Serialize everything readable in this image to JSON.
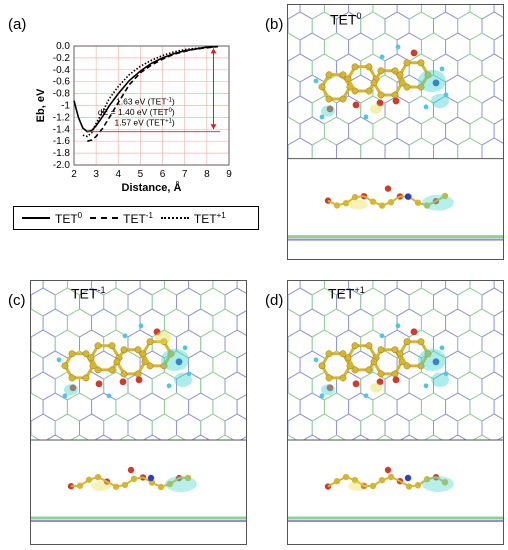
{
  "panels": {
    "a": "(a)",
    "b": "(b)",
    "c": "(c)",
    "d": "(d)"
  },
  "chart_data": {
    "type": "line",
    "xlabel": "Distance, Å",
    "ylabel": "Eb, eV",
    "xlim": [
      2,
      9
    ],
    "ylim": [
      -2.0,
      0.0
    ],
    "xticks": [
      "2",
      "3",
      "4",
      "5",
      "6",
      "7",
      "8",
      "9"
    ],
    "yticks": [
      "0.0",
      "-0.2",
      "-0.4",
      "-0.6",
      "-0.8",
      "-1",
      "-1.2",
      "-1.4",
      "-1.6",
      "-1.8",
      "-2.0"
    ],
    "grid": true,
    "series": [
      {
        "name": "TET0",
        "style": "solid",
        "x": [
          2.0,
          2.2,
          2.4,
          2.6,
          2.8,
          3.0,
          3.3,
          3.6,
          4.0,
          4.5,
          5.0,
          5.5,
          6.0,
          6.5,
          7.0,
          7.5,
          8.0,
          8.5
        ],
        "y": [
          -0.92,
          -1.2,
          -1.38,
          -1.44,
          -1.42,
          -1.34,
          -1.18,
          -1.0,
          -0.8,
          -0.58,
          -0.42,
          -0.29,
          -0.2,
          -0.13,
          -0.08,
          -0.05,
          -0.02,
          -0.01
        ]
      },
      {
        "name": "TET-1",
        "style": "dashed",
        "x": [
          2.6,
          2.8,
          3.0,
          3.3,
          3.6,
          4.0,
          4.5,
          5.0,
          5.5,
          6.0,
          6.5,
          7.0,
          7.5,
          8.0,
          8.5
        ],
        "y": [
          -1.6,
          -1.58,
          -1.52,
          -1.38,
          -1.2,
          -0.95,
          -0.65,
          -0.45,
          -0.32,
          -0.22,
          -0.14,
          -0.09,
          -0.05,
          -0.03,
          -0.01
        ]
      },
      {
        "name": "TET+1",
        "style": "dotted",
        "x": [
          2.4,
          2.6,
          2.8,
          3.0,
          3.3,
          3.6,
          4.0,
          4.5,
          5.0,
          5.5,
          6.0,
          6.5,
          7.0,
          7.5,
          8.0,
          8.5
        ],
        "y": [
          -1.5,
          -1.52,
          -1.46,
          -1.3,
          -1.1,
          -0.88,
          -0.68,
          -0.48,
          -0.34,
          -0.24,
          -0.16,
          -0.1,
          -0.06,
          -0.04,
          -0.02,
          -0.01
        ]
      }
    ],
    "annotations": {
      "line1": "1.63 eV (TET",
      "line1_sup": "-1",
      "line1_end": ")",
      "line2": "dE = 1.40 eV  (TET",
      "line2_sup": "0",
      "line2_end": ")",
      "line3": "1.57 eV (TET",
      "line3_sup": "+1",
      "line3_end": ")"
    }
  },
  "legend": {
    "items": [
      {
        "base": "TET",
        "sup": "0",
        "style": "solid"
      },
      {
        "base": "TET",
        "sup": "-1",
        "style": "dashed"
      },
      {
        "base": "TET",
        "sup": "+1",
        "style": "dotted"
      }
    ]
  },
  "labels": {
    "b": {
      "base": "TET",
      "sup": "0"
    },
    "c": {
      "base": "TET",
      "sup": "-1"
    },
    "d": {
      "base": "TET",
      "sup": "+1"
    }
  },
  "colors": {
    "graphene_green": "#8fd18f",
    "graphene_blue": "#8f8fdf",
    "carbon": "#d6b531",
    "oxygen": "#d23b2b",
    "hydrogen": "#4ec6e6",
    "nitrogen": "#2a3fc8",
    "density_cyan": "#48d6cf",
    "density_yellow": "#e6e04a",
    "chart_line": "#000000",
    "grid": "#f2b6b6",
    "arrow": "#d62020"
  }
}
